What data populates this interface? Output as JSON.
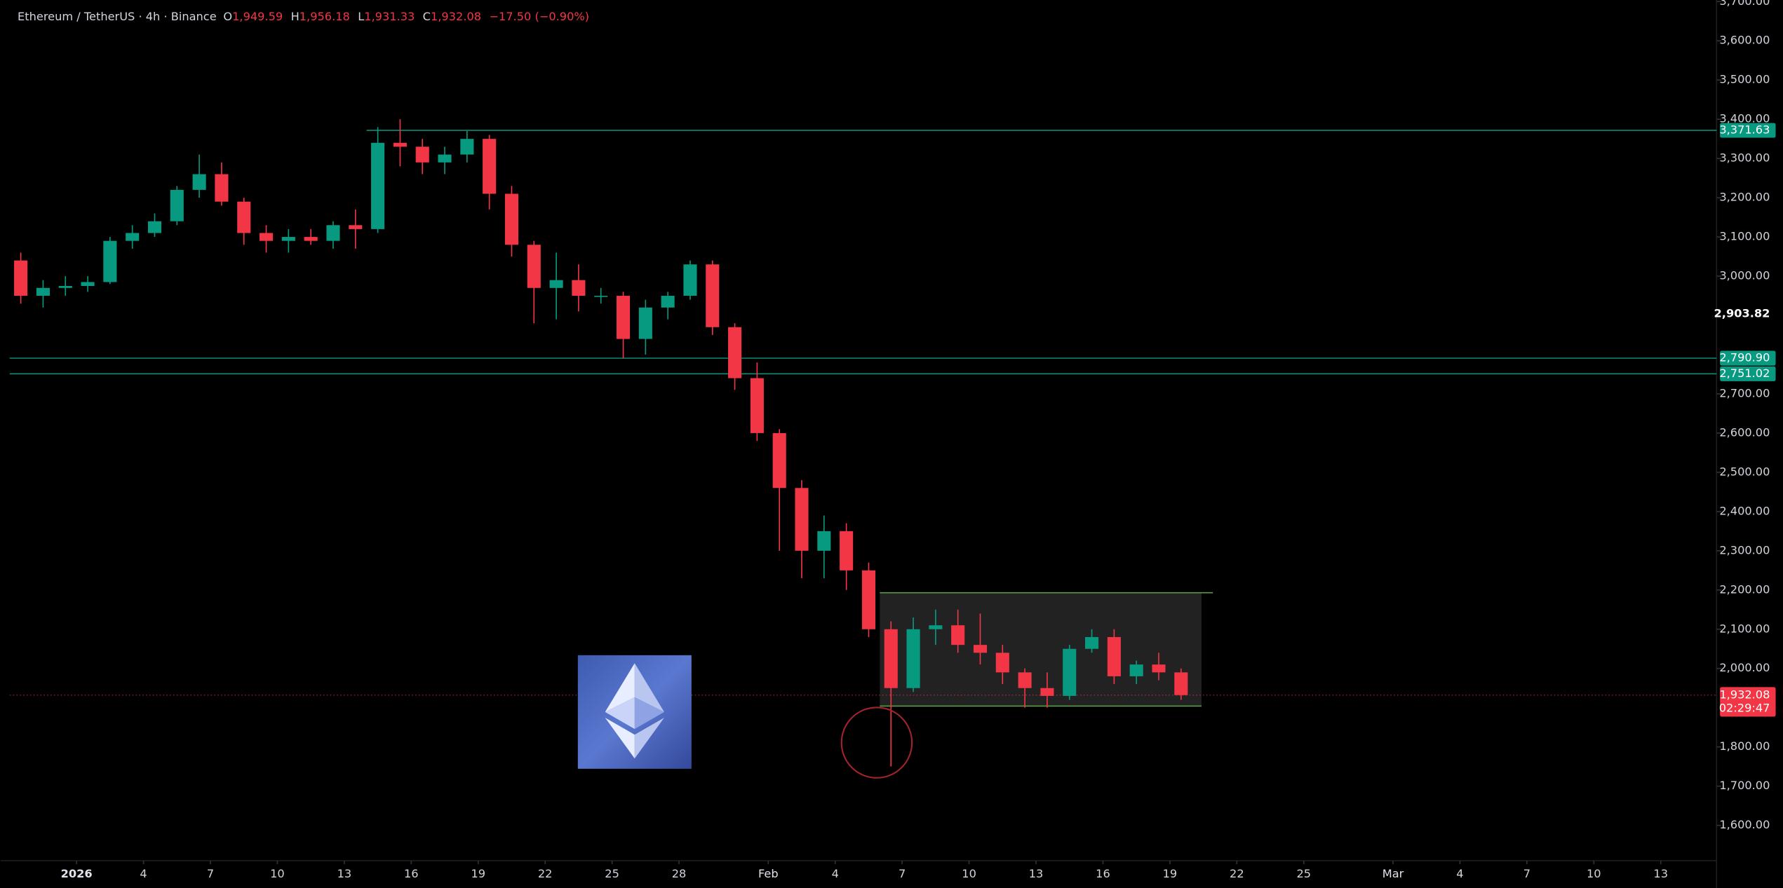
{
  "chart_data": {
    "type": "candlestick",
    "title": "Ethereum / TetherUS · 4h · Binance",
    "ohlc_legend": [
      {
        "label": "O",
        "value": "1,949.59"
      },
      {
        "label": "H",
        "value": "1,956.18"
      },
      {
        "label": "L",
        "value": "1,931.33"
      },
      {
        "label": "C",
        "value": "1,932.08"
      }
    ],
    "change": "−17.50 (−0.90%)",
    "up_color": "#089981",
    "down_color": "#f23645",
    "xlim": [
      "2025-12-29T00:00:00Z",
      "2026-03-15T12:00:00Z"
    ],
    "xticks": [
      {
        "value": "2026-01-01",
        "label": "2026"
      },
      {
        "value": "2026-01-04",
        "label": "4"
      },
      {
        "value": "2026-01-07",
        "label": "7"
      },
      {
        "value": "2026-01-10",
        "label": "10"
      },
      {
        "value": "2026-01-13",
        "label": "13"
      },
      {
        "value": "2026-01-16",
        "label": "16"
      },
      {
        "value": "2026-01-19",
        "label": "19"
      },
      {
        "value": "2026-01-22",
        "label": "22"
      },
      {
        "value": "2026-01-25",
        "label": "25"
      },
      {
        "value": "2026-01-28",
        "label": "28"
      },
      {
        "value": "2026-02-01",
        "label": "Feb"
      },
      {
        "value": "2026-02-04",
        "label": "4"
      },
      {
        "value": "2026-02-07",
        "label": "7"
      },
      {
        "value": "2026-02-10",
        "label": "10"
      },
      {
        "value": "2026-02-13",
        "label": "13"
      },
      {
        "value": "2026-02-16",
        "label": "16"
      },
      {
        "value": "2026-02-19",
        "label": "19"
      },
      {
        "value": "2026-02-22",
        "label": "22"
      },
      {
        "value": "2026-02-25",
        "label": "25"
      },
      {
        "value": "2026-03-01",
        "label": "Mar"
      },
      {
        "value": "2026-03-04",
        "label": "4"
      },
      {
        "value": "2026-03-07",
        "label": "7"
      },
      {
        "value": "2026-03-10",
        "label": "10"
      },
      {
        "value": "2026-03-13",
        "label": "13"
      }
    ],
    "ylim": [
      1504,
      3704
    ],
    "yticks": [
      {
        "value": 1600,
        "label": "1,600.00"
      },
      {
        "value": 1700,
        "label": "1,700.00"
      },
      {
        "value": 1800,
        "label": "1,800.00"
      },
      {
        "value": 2000,
        "label": "2,000.00"
      },
      {
        "value": 2100,
        "label": "2,100.00"
      },
      {
        "value": 2200,
        "label": "2,200.00"
      },
      {
        "value": 2300,
        "label": "2,300.00"
      },
      {
        "value": 2400,
        "label": "2,400.00"
      },
      {
        "value": 2500,
        "label": "2,500.00"
      },
      {
        "value": 2600,
        "label": "2,600.00"
      },
      {
        "value": 2700,
        "label": "2,700.00"
      },
      {
        "value": 3000,
        "label": "3,000.00"
      },
      {
        "value": 3100,
        "label": "3,100.00"
      },
      {
        "value": 3200,
        "label": "3,200.00"
      },
      {
        "value": 3300,
        "label": "3,300.00"
      },
      {
        "value": 3400,
        "label": "3,400.00"
      },
      {
        "value": 3500,
        "label": "3,500.00"
      },
      {
        "value": 3600,
        "label": "3,600.00"
      },
      {
        "value": 3700,
        "label": "3,700.00"
      }
    ],
    "crosshair_price": {
      "value": 2903.82,
      "label": "2,903.82"
    },
    "price_lines": [
      {
        "value": 3371.63,
        "label": "3,371.63",
        "color": "#089981",
        "start": "2026-01-14"
      },
      {
        "value": 2790.9,
        "label": "2,790.90",
        "color": "#089981"
      },
      {
        "value": 2751.02,
        "label": "2,751.02",
        "color": "#089981"
      }
    ],
    "last_price": {
      "value": 1932.08,
      "label": "1,932.08",
      "countdown": "02:29:47",
      "color": "#f23645"
    },
    "range_box": {
      "top": 2193,
      "bottom": 1904,
      "start": "2026-02-06",
      "end": "2026-02-20T10:00:00Z",
      "color": "#5b9c4a"
    },
    "candles": [
      {
        "x": "2025-12-29",
        "open": 3040,
        "high": 3060,
        "low": 2930,
        "close": 2950
      },
      {
        "x": "2025-12-30",
        "open": 2950,
        "high": 2990,
        "low": 2920,
        "close": 2970
      },
      {
        "x": "2025-12-31",
        "open": 2970,
        "high": 3000,
        "low": 2950,
        "close": 2975
      },
      {
        "x": "2026-01-01",
        "open": 2975,
        "high": 3000,
        "low": 2960,
        "close": 2985
      },
      {
        "x": "2026-01-02",
        "open": 2985,
        "high": 3100,
        "low": 2980,
        "close": 3090
      },
      {
        "x": "2026-01-03",
        "open": 3090,
        "high": 3130,
        "low": 3070,
        "close": 3110
      },
      {
        "x": "2026-01-04",
        "open": 3110,
        "high": 3160,
        "low": 3100,
        "close": 3140
      },
      {
        "x": "2026-01-05",
        "open": 3140,
        "high": 3230,
        "low": 3130,
        "close": 3220
      },
      {
        "x": "2026-01-06",
        "open": 3220,
        "high": 3310,
        "low": 3200,
        "close": 3260
      },
      {
        "x": "2026-01-07",
        "open": 3260,
        "high": 3290,
        "low": 3180,
        "close": 3190
      },
      {
        "x": "2026-01-08",
        "open": 3190,
        "high": 3200,
        "low": 3080,
        "close": 3110
      },
      {
        "x": "2026-01-09",
        "open": 3110,
        "high": 3130,
        "low": 3060,
        "close": 3090
      },
      {
        "x": "2026-01-10",
        "open": 3090,
        "high": 3120,
        "low": 3060,
        "close": 3100
      },
      {
        "x": "2026-01-11",
        "open": 3100,
        "high": 3120,
        "low": 3080,
        "close": 3090
      },
      {
        "x": "2026-01-12",
        "open": 3090,
        "high": 3140,
        "low": 3070,
        "close": 3130
      },
      {
        "x": "2026-01-13",
        "open": 3130,
        "high": 3170,
        "low": 3070,
        "close": 3120
      },
      {
        "x": "2026-01-14",
        "open": 3120,
        "high": 3380,
        "low": 3110,
        "close": 3340
      },
      {
        "x": "2026-01-15",
        "open": 3340,
        "high": 3400,
        "low": 3280,
        "close": 3330
      },
      {
        "x": "2026-01-16",
        "open": 3330,
        "high": 3350,
        "low": 3260,
        "close": 3290
      },
      {
        "x": "2026-01-17",
        "open": 3290,
        "high": 3330,
        "low": 3260,
        "close": 3310
      },
      {
        "x": "2026-01-18",
        "open": 3310,
        "high": 3370,
        "low": 3290,
        "close": 3350
      },
      {
        "x": "2026-01-19",
        "open": 3350,
        "high": 3360,
        "low": 3170,
        "close": 3210
      },
      {
        "x": "2026-01-20",
        "open": 3210,
        "high": 3230,
        "low": 3050,
        "close": 3080
      },
      {
        "x": "2026-01-21",
        "open": 3080,
        "high": 3090,
        "low": 2880,
        "close": 2970
      },
      {
        "x": "2026-01-22",
        "open": 2970,
        "high": 3060,
        "low": 2890,
        "close": 2990
      },
      {
        "x": "2026-01-23",
        "open": 2990,
        "high": 3030,
        "low": 2910,
        "close": 2950
      },
      {
        "x": "2026-01-24",
        "open": 2950,
        "high": 2970,
        "low": 2930,
        "close": 2950
      },
      {
        "x": "2026-01-25",
        "open": 2950,
        "high": 2960,
        "low": 2790,
        "close": 2840
      },
      {
        "x": "2026-01-26",
        "open": 2840,
        "high": 2940,
        "low": 2800,
        "close": 2920
      },
      {
        "x": "2026-01-27",
        "open": 2920,
        "high": 2960,
        "low": 2890,
        "close": 2950
      },
      {
        "x": "2026-01-28",
        "open": 2950,
        "high": 3040,
        "low": 2940,
        "close": 3030
      },
      {
        "x": "2026-01-29",
        "open": 3030,
        "high": 3040,
        "low": 2850,
        "close": 2870
      },
      {
        "x": "2026-01-30",
        "open": 2870,
        "high": 2880,
        "low": 2710,
        "close": 2740
      },
      {
        "x": "2026-01-31",
        "open": 2740,
        "high": 2780,
        "low": 2580,
        "close": 2600
      },
      {
        "x": "2026-02-01",
        "open": 2600,
        "high": 2610,
        "low": 2300,
        "close": 2460
      },
      {
        "x": "2026-02-02",
        "open": 2460,
        "high": 2480,
        "low": 2230,
        "close": 2300
      },
      {
        "x": "2026-02-03",
        "open": 2300,
        "high": 2390,
        "low": 2230,
        "close": 2350
      },
      {
        "x": "2026-02-04",
        "open": 2350,
        "high": 2370,
        "low": 2200,
        "close": 2250
      },
      {
        "x": "2026-02-05",
        "open": 2250,
        "high": 2270,
        "low": 2080,
        "close": 2100
      },
      {
        "x": "2026-02-06",
        "open": 2100,
        "high": 2120,
        "low": 1750,
        "close": 1950
      },
      {
        "x": "2026-02-07",
        "open": 1950,
        "high": 2130,
        "low": 1940,
        "close": 2100
      },
      {
        "x": "2026-02-08",
        "open": 2100,
        "high": 2150,
        "low": 2060,
        "close": 2110
      },
      {
        "x": "2026-02-09",
        "open": 2110,
        "high": 2150,
        "low": 2040,
        "close": 2060
      },
      {
        "x": "2026-02-10",
        "open": 2060,
        "high": 2140,
        "low": 2010,
        "close": 2040
      },
      {
        "x": "2026-02-11",
        "open": 2040,
        "high": 2060,
        "low": 1960,
        "close": 1990
      },
      {
        "x": "2026-02-12",
        "open": 1990,
        "high": 2000,
        "low": 1900,
        "close": 1950
      },
      {
        "x": "2026-02-13",
        "open": 1950,
        "high": 1990,
        "low": 1900,
        "close": 1930
      },
      {
        "x": "2026-02-14",
        "open": 1930,
        "high": 2060,
        "low": 1920,
        "close": 2050
      },
      {
        "x": "2026-02-15",
        "open": 2050,
        "high": 2100,
        "low": 2040,
        "close": 2080
      },
      {
        "x": "2026-02-16",
        "open": 2080,
        "high": 2100,
        "low": 1960,
        "close": 1980
      },
      {
        "x": "2026-02-17",
        "open": 1980,
        "high": 2020,
        "low": 1960,
        "close": 2010
      },
      {
        "x": "2026-02-18",
        "open": 2010,
        "high": 2040,
        "low": 1970,
        "close": 1990
      },
      {
        "x": "2026-02-19",
        "open": 1990,
        "high": 2000,
        "low": 1920,
        "close": 1932.08
      }
    ]
  }
}
